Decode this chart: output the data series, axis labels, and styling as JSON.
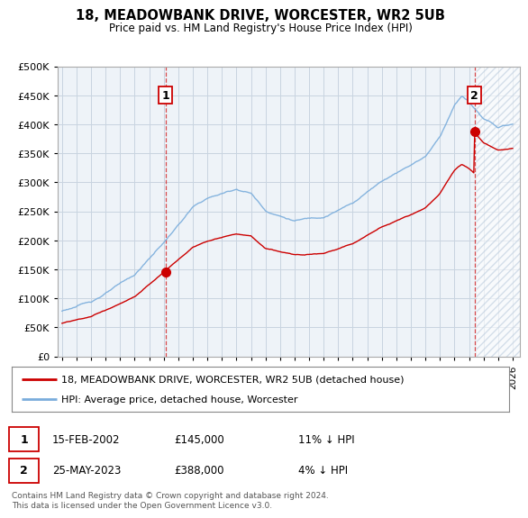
{
  "title": "18, MEADOWBANK DRIVE, WORCESTER, WR2 5UB",
  "subtitle": "Price paid vs. HM Land Registry's House Price Index (HPI)",
  "hpi_label": "HPI: Average price, detached house, Worcester",
  "property_label": "18, MEADOWBANK DRIVE, WORCESTER, WR2 5UB (detached house)",
  "sale1_date": "15-FEB-2002",
  "sale1_price": "£145,000",
  "sale1_hpi": "11% ↓ HPI",
  "sale2_date": "25-MAY-2023",
  "sale2_price": "£388,000",
  "sale2_hpi": "4% ↓ HPI",
  "footnote": "Contains HM Land Registry data © Crown copyright and database right 2024.\nThis data is licensed under the Open Government Licence v3.0.",
  "hpi_color": "#7aaddc",
  "property_color": "#cc0000",
  "sale_marker_color": "#cc0000",
  "vline_color": "#cc0000",
  "background_color": "#ffffff",
  "plot_bg_color": "#eef3f8",
  "grid_color": "#c8d4e0",
  "ylim": [
    0,
    500000
  ],
  "yticks": [
    0,
    50000,
    100000,
    150000,
    200000,
    250000,
    300000,
    350000,
    400000,
    450000,
    500000
  ],
  "xlim_start": 1994.7,
  "xlim_end": 2026.5,
  "sale1_x": 2002.12,
  "sale1_y": 145000,
  "sale2_x": 2023.37,
  "sale2_y": 388000
}
